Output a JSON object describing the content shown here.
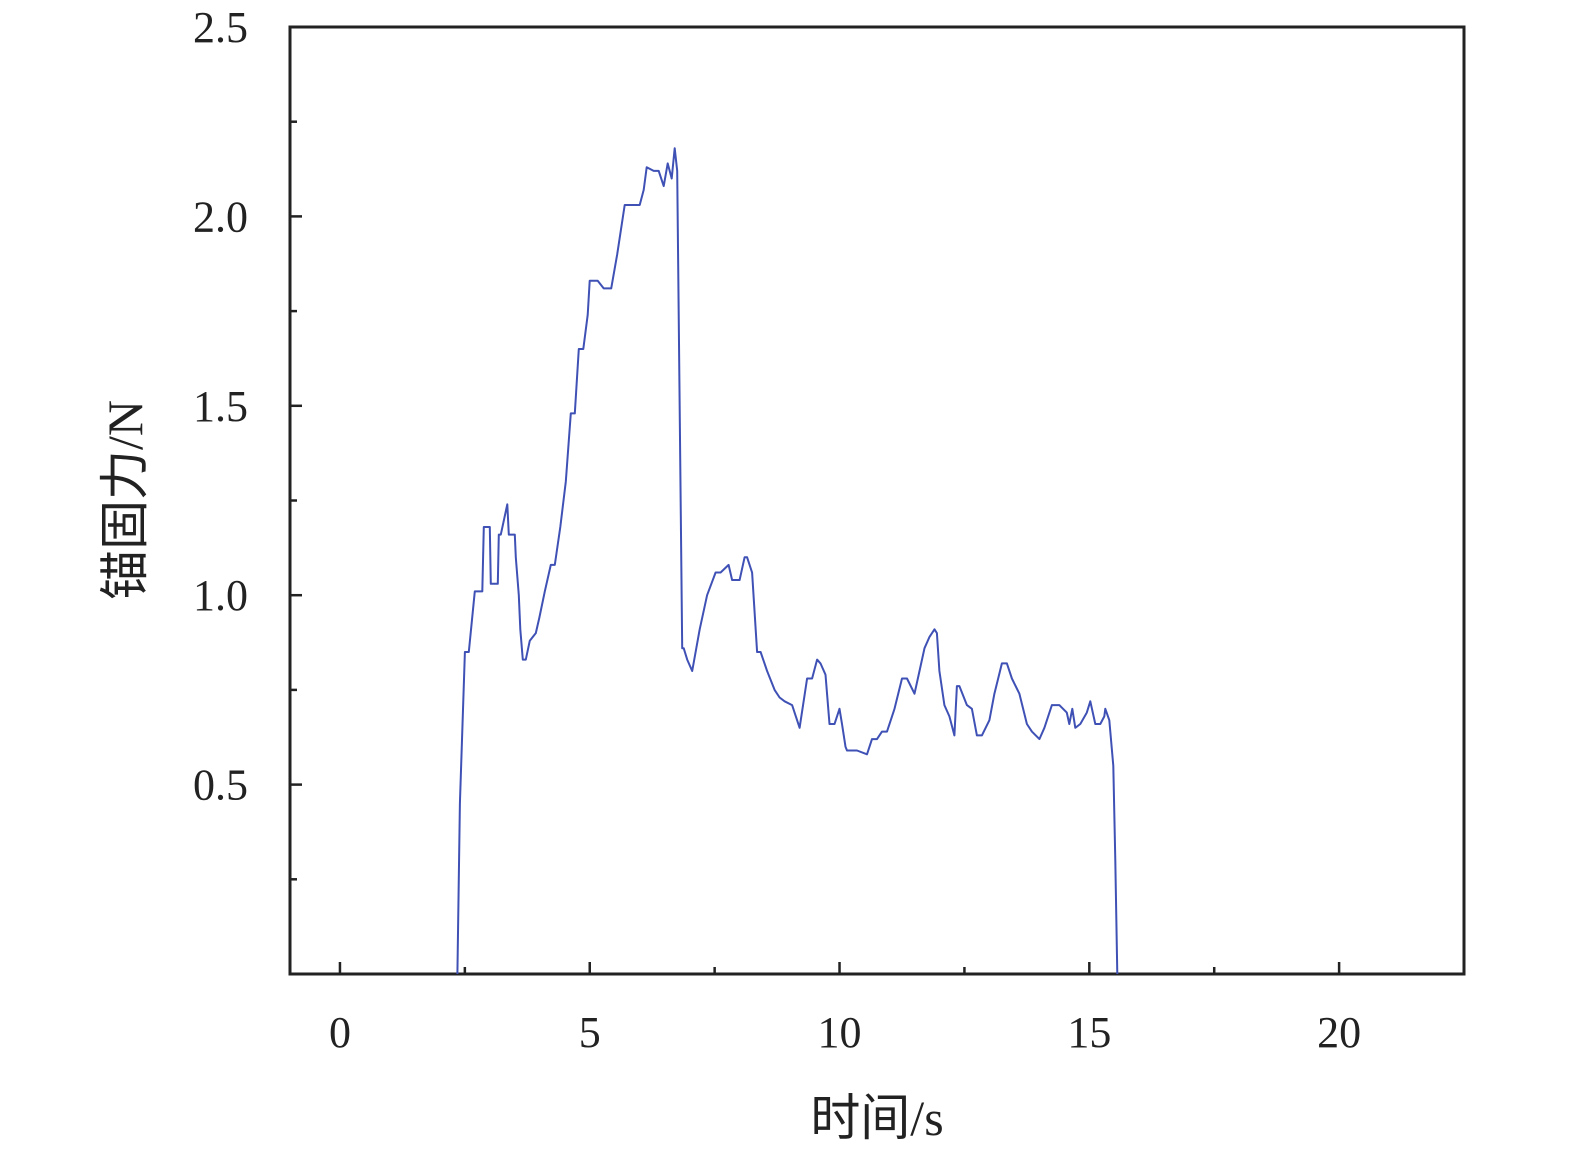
{
  "chart_data": {
    "type": "line",
    "title": "",
    "xlabel": "时间/s",
    "ylabel": "锚固力/N",
    "xlim": [
      -1,
      22.5
    ],
    "ylim": [
      0,
      2.5
    ],
    "x_ticks": [
      0,
      5,
      10,
      15,
      20
    ],
    "x_tick_labels": [
      "0",
      "5",
      "10",
      "15",
      "20"
    ],
    "y_ticks": [
      0.5,
      1.0,
      1.5,
      2.0,
      2.5
    ],
    "y_tick_labels": [
      "0.5",
      "1.0",
      "1.5",
      "2.0",
      "2.5"
    ],
    "grid": false,
    "legend": "none",
    "colors": {
      "line": "#3f51b5",
      "axis": "#222222"
    },
    "series": [
      {
        "x": [
          2.35,
          2.4,
          2.5,
          2.58,
          2.7,
          2.85,
          2.88,
          3.0,
          3.02,
          3.16,
          3.18,
          3.22,
          3.35,
          3.38,
          3.5,
          3.52,
          3.58,
          3.61,
          3.66,
          3.72,
          3.8,
          3.92,
          3.99,
          4.1,
          4.22,
          4.3,
          4.41,
          4.52,
          4.62,
          4.7,
          4.78,
          4.87,
          4.96,
          5.0,
          5.07,
          5.16,
          5.28,
          5.43,
          5.55,
          5.7,
          5.85,
          6.0,
          6.08,
          6.14,
          6.28,
          6.38,
          6.48,
          6.56,
          6.64,
          6.7,
          6.75,
          6.85,
          6.88,
          6.95,
          7.05,
          7.2,
          7.35,
          7.52,
          7.62,
          7.78,
          7.85,
          8.0,
          8.1,
          8.15,
          8.25,
          8.35,
          8.42,
          8.55,
          8.7,
          8.8,
          8.9,
          9.05,
          9.2,
          9.35,
          9.45,
          9.55,
          9.62,
          9.72,
          9.8,
          9.9,
          10.0,
          10.05,
          10.12,
          10.15,
          10.25,
          10.35,
          10.55,
          10.65,
          10.75,
          10.85,
          10.95,
          11.1,
          11.25,
          11.35,
          11.5,
          11.6,
          11.7,
          11.8,
          11.9,
          11.95,
          12.0,
          12.1,
          12.2,
          12.3,
          12.35,
          12.4,
          12.55,
          12.65,
          12.75,
          12.85,
          13.0,
          13.1,
          13.25,
          13.35,
          13.45,
          13.6,
          13.75,
          13.85,
          14.0,
          14.1,
          14.25,
          14.4,
          14.55,
          14.6,
          14.66,
          14.72,
          14.82,
          14.95,
          15.02,
          15.12,
          15.22,
          15.3,
          15.32,
          15.4,
          15.48,
          15.52,
          15.56
        ],
        "y": [
          0.0,
          0.45,
          0.85,
          0.85,
          1.01,
          1.01,
          1.18,
          1.18,
          1.03,
          1.03,
          1.16,
          1.16,
          1.24,
          1.16,
          1.16,
          1.1,
          1.0,
          0.91,
          0.83,
          0.83,
          0.88,
          0.9,
          0.94,
          1.01,
          1.08,
          1.08,
          1.18,
          1.3,
          1.48,
          1.48,
          1.65,
          1.65,
          1.74,
          1.83,
          1.83,
          1.83,
          1.81,
          1.81,
          1.9,
          2.03,
          2.03,
          2.03,
          2.07,
          2.13,
          2.12,
          2.12,
          2.08,
          2.14,
          2.1,
          2.18,
          2.12,
          0.86,
          0.86,
          0.83,
          0.8,
          0.91,
          1.0,
          1.06,
          1.06,
          1.08,
          1.04,
          1.04,
          1.1,
          1.1,
          1.06,
          0.85,
          0.85,
          0.8,
          0.75,
          0.73,
          0.72,
          0.71,
          0.65,
          0.78,
          0.78,
          0.83,
          0.82,
          0.79,
          0.66,
          0.66,
          0.7,
          0.66,
          0.6,
          0.59,
          0.59,
          0.59,
          0.58,
          0.62,
          0.62,
          0.64,
          0.64,
          0.7,
          0.78,
          0.78,
          0.74,
          0.8,
          0.86,
          0.89,
          0.91,
          0.9,
          0.8,
          0.71,
          0.68,
          0.63,
          0.76,
          0.76,
          0.71,
          0.7,
          0.63,
          0.63,
          0.67,
          0.74,
          0.82,
          0.82,
          0.78,
          0.74,
          0.66,
          0.64,
          0.62,
          0.65,
          0.71,
          0.71,
          0.69,
          0.66,
          0.7,
          0.65,
          0.66,
          0.69,
          0.72,
          0.66,
          0.66,
          0.68,
          0.7,
          0.67,
          0.55,
          0.3,
          0.0
        ]
      }
    ]
  }
}
